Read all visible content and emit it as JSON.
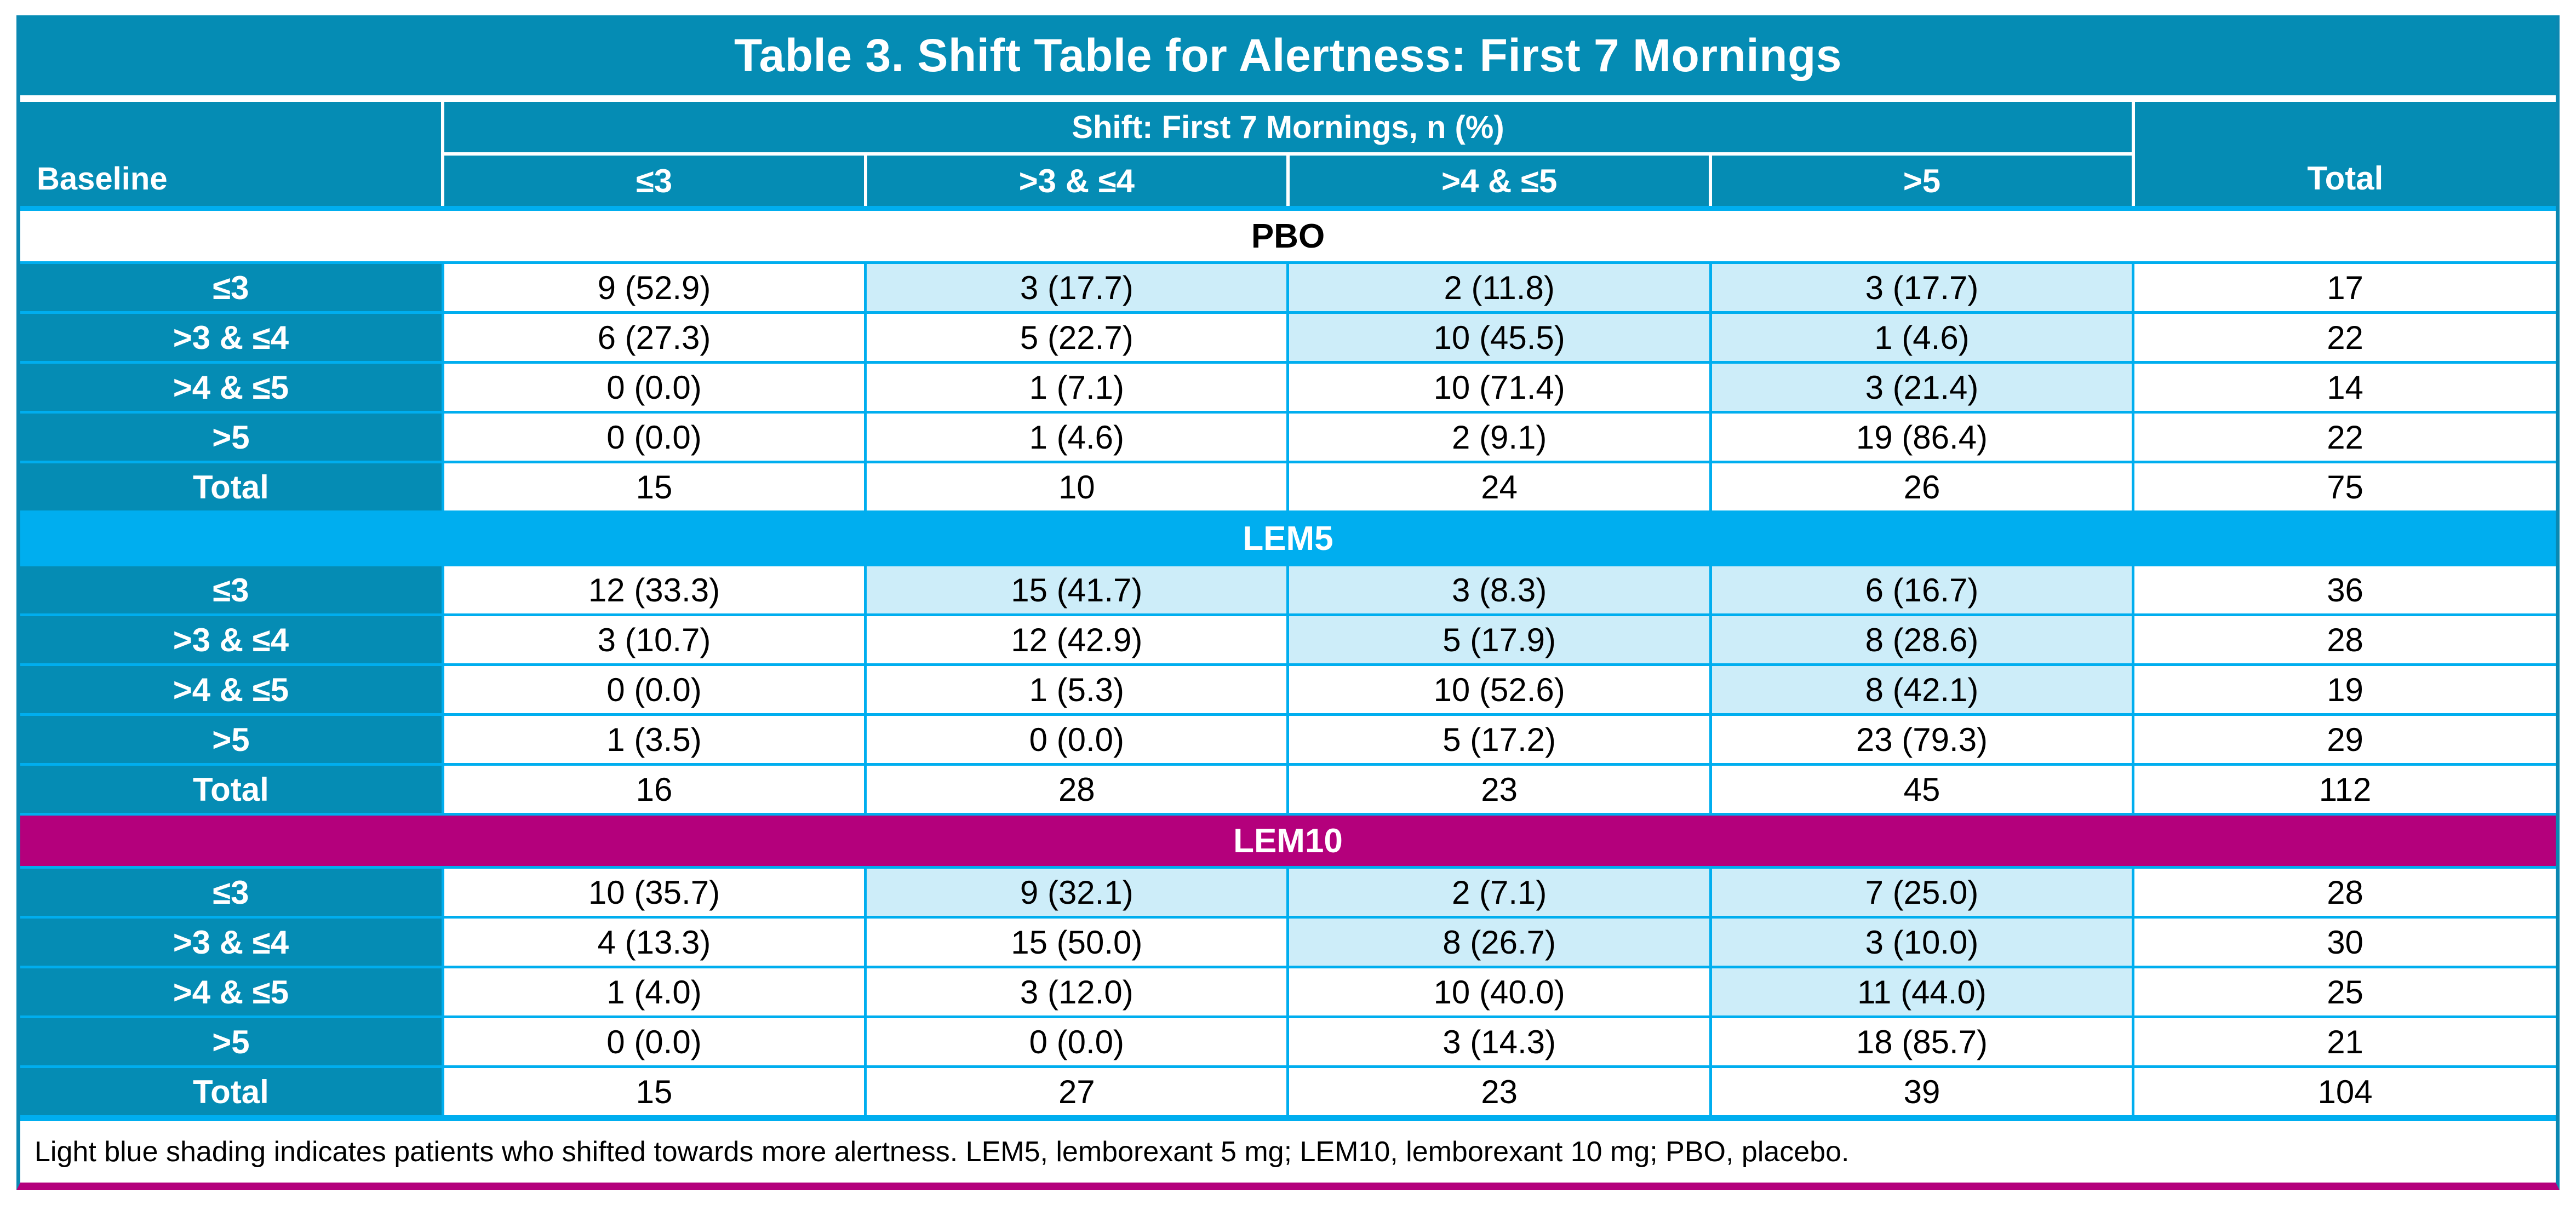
{
  "title": "Table 3. Shift Table for Alertness: First 7 Mornings",
  "header": {
    "baseline_label": "Baseline",
    "shift_group_label": "Shift: First 7 Mornings, n (%)",
    "shift_columns": [
      "≤3",
      ">3 & ≤4",
      ">4 & ≤5",
      ">5"
    ],
    "total_label": "Total"
  },
  "sections": [
    {
      "name": "PBO",
      "band_style": "pbo",
      "rows": [
        {
          "label": "≤3",
          "values": [
            "9 (52.9)",
            "3 (17.7)",
            "2 (11.8)",
            "3 (17.7)",
            "17"
          ]
        },
        {
          "label": ">3 & ≤4",
          "values": [
            "6 (27.3)",
            "5 (22.7)",
            "10 (45.5)",
            "1 (4.6)",
            "22"
          ]
        },
        {
          "label": ">4 & ≤5",
          "values": [
            "0 (0.0)",
            "1 (7.1)",
            "10 (71.4)",
            "3 (21.4)",
            "14"
          ]
        },
        {
          "label": ">5",
          "values": [
            "0 (0.0)",
            "1 (4.6)",
            "2 (9.1)",
            "19 (86.4)",
            "22"
          ]
        },
        {
          "label": "Total",
          "values": [
            "15",
            "10",
            "24",
            "26",
            "75"
          ]
        }
      ]
    },
    {
      "name": "LEM5",
      "band_style": "lem5",
      "rows": [
        {
          "label": "≤3",
          "values": [
            "12 (33.3)",
            "15 (41.7)",
            "3 (8.3)",
            "6 (16.7)",
            "36"
          ]
        },
        {
          "label": ">3 & ≤4",
          "values": [
            "3 (10.7)",
            "12 (42.9)",
            "5 (17.9)",
            "8 (28.6)",
            "28"
          ]
        },
        {
          "label": ">4 & ≤5",
          "values": [
            "0 (0.0)",
            "1 (5.3)",
            "10 (52.6)",
            "8 (42.1)",
            "19"
          ]
        },
        {
          "label": ">5",
          "values": [
            "1 (3.5)",
            "0 (0.0)",
            "5 (17.2)",
            "23 (79.3)",
            "29"
          ]
        },
        {
          "label": "Total",
          "values": [
            "16",
            "28",
            "23",
            "45",
            "112"
          ]
        }
      ]
    },
    {
      "name": "LEM10",
      "band_style": "lem10",
      "rows": [
        {
          "label": "≤3",
          "values": [
            "10 (35.7)",
            "9 (32.1)",
            "2 (7.1)",
            "7 (25.0)",
            "28"
          ]
        },
        {
          "label": ">3 & ≤4",
          "values": [
            "4 (13.3)",
            "15 (50.0)",
            "8 (26.7)",
            "3 (10.0)",
            "30"
          ]
        },
        {
          "label": ">4 & ≤5",
          "values": [
            "1 (4.0)",
            "3 (12.0)",
            "10 (40.0)",
            "11 (44.0)",
            "25"
          ]
        },
        {
          "label": ">5",
          "values": [
            "0 (0.0)",
            "0 (0.0)",
            "3 (14.3)",
            "18 (85.7)",
            "21"
          ]
        },
        {
          "label": "Total",
          "values": [
            "15",
            "27",
            "23",
            "39",
            "104"
          ]
        }
      ]
    }
  ],
  "footnote": "Light blue shading indicates patients who shifted towards more alertness. LEM5, lemborexant 5 mg; LEM10, lemborexant 10 mg; PBO, placebo.",
  "colors": {
    "teal": "#058CB4",
    "bright_blue": "#00AEEF",
    "magenta": "#B4007C",
    "shade_blue": "#CDEDF9",
    "grid_blue": "#00AEEF",
    "outer_border": "#0A88B2"
  }
}
